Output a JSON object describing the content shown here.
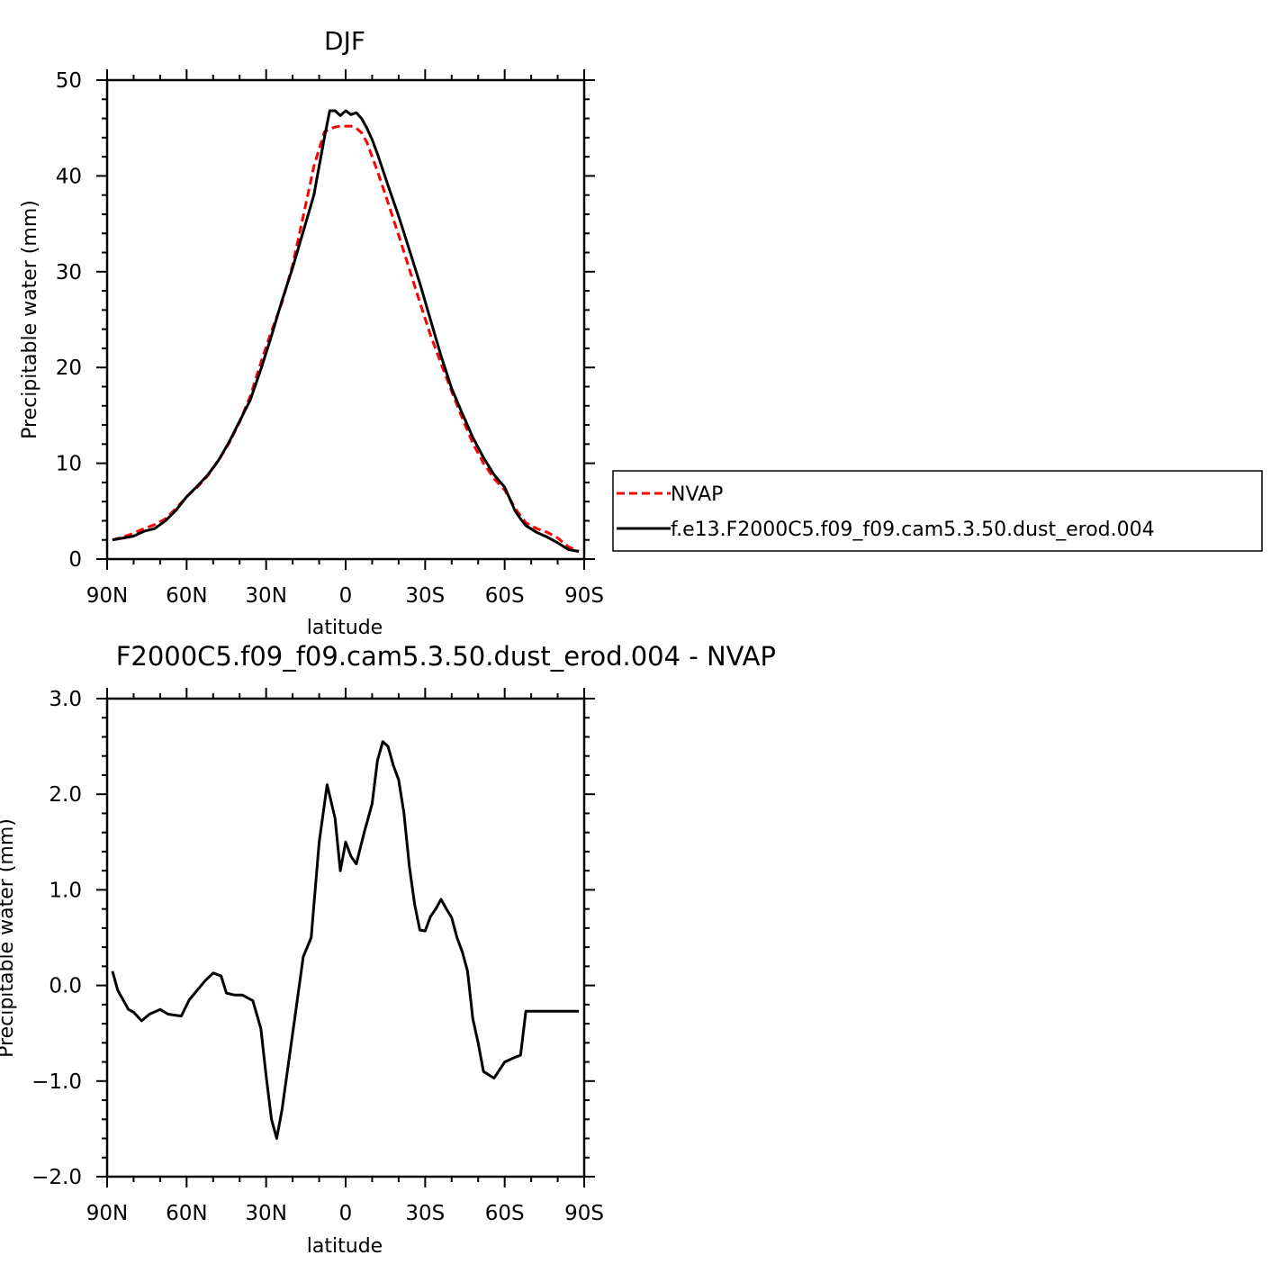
{
  "figure": {
    "title": "DJF",
    "legend_box_color": "#000000"
  },
  "chart_data": [
    {
      "type": "line",
      "title": "DJF",
      "xlabel": "latitude",
      "ylabel": "Precipitable water (mm)",
      "x_ticklabels": [
        "90N",
        "60N",
        "30N",
        "0",
        "30S",
        "60S",
        "90S"
      ],
      "x_tick_values": [
        -90,
        -60,
        -30,
        0,
        30,
        60,
        90
      ],
      "xlim": [
        -90,
        90
      ],
      "ylim": [
        0,
        50
      ],
      "y_ticks": [
        0,
        10,
        20,
        30,
        40,
        50
      ],
      "y_ticklabels": [
        "0",
        "10",
        "20",
        "30",
        "40",
        "50"
      ],
      "grid": false,
      "legend_position": "right",
      "series": [
        {
          "name": "NVAP",
          "color": "#ff0000",
          "dash": "dashed",
          "x": [
            -88,
            -84,
            -80,
            -76,
            -72,
            -68,
            -64,
            -60,
            -56,
            -52,
            -48,
            -44,
            -40,
            -36,
            -32,
            -28,
            -24,
            -20,
            -16,
            -12,
            -8,
            -6,
            -4,
            -2,
            0,
            2,
            4,
            6,
            8,
            10,
            12,
            16,
            20,
            24,
            28,
            32,
            36,
            40,
            44,
            48,
            52,
            56,
            60,
            64,
            66,
            68,
            72,
            76,
            80,
            84,
            88
          ],
          "y": [
            2.0,
            2.3,
            2.7,
            3.2,
            3.6,
            4.2,
            5.3,
            6.5,
            7.5,
            8.7,
            10.3,
            12.1,
            14.3,
            17.0,
            20.5,
            23.8,
            26.8,
            30.7,
            35.8,
            41.0,
            44.6,
            44.9,
            45.1,
            45.2,
            45.2,
            45.2,
            45.0,
            44.5,
            43.5,
            42.0,
            40.5,
            37.2,
            33.8,
            30.3,
            26.8,
            23.4,
            20.4,
            17.5,
            14.7,
            12.1,
            10.0,
            8.4,
            7.2,
            5.3,
            4.5,
            3.8,
            3.2,
            2.8,
            2.2,
            1.3,
            0.8
          ]
        },
        {
          "name": "f.e13.F2000C5.f09_f09.cam5.3.50.dust_erod.004",
          "color": "#000000",
          "dash": "solid",
          "x": [
            -88,
            -84,
            -80,
            -76,
            -72,
            -68,
            -64,
            -60,
            -56,
            -52,
            -48,
            -44,
            -40,
            -36,
            -32,
            -28,
            -24,
            -20,
            -16,
            -12,
            -8,
            -6,
            -4,
            -2,
            0,
            2,
            4,
            6,
            8,
            10,
            12,
            16,
            20,
            24,
            28,
            32,
            36,
            40,
            44,
            48,
            52,
            56,
            60,
            64,
            66,
            68,
            72,
            76,
            80,
            84,
            88
          ],
          "y": [
            2.0,
            2.2,
            2.4,
            2.9,
            3.2,
            4.0,
            5.1,
            6.5,
            7.6,
            8.8,
            10.3,
            12.2,
            14.4,
            16.6,
            19.8,
            23.3,
            27.0,
            30.4,
            34.2,
            38.0,
            44.0,
            46.8,
            46.8,
            46.3,
            46.8,
            46.4,
            46.6,
            46.0,
            45.0,
            43.8,
            42.3,
            39.0,
            35.8,
            32.3,
            28.8,
            25.0,
            21.2,
            17.8,
            15.2,
            12.7,
            10.6,
            8.8,
            7.5,
            5.0,
            4.2,
            3.5,
            2.8,
            2.3,
            1.7,
            1.0,
            0.8
          ]
        }
      ]
    },
    {
      "type": "line",
      "title": "F2000C5.f09_f09.cam5.3.50.dust_erod.004 - NVAP",
      "xlabel": "latitude",
      "ylabel": "Precipitable water (mm)",
      "x_ticklabels": [
        "90N",
        "60N",
        "30N",
        "0",
        "30S",
        "60S",
        "90S"
      ],
      "x_tick_values": [
        -90,
        -60,
        -30,
        0,
        30,
        60,
        90
      ],
      "xlim": [
        -90,
        90
      ],
      "ylim": [
        -2.0,
        3.0
      ],
      "y_ticks": [
        -2.0,
        -1.0,
        0.0,
        1.0,
        2.0,
        3.0
      ],
      "y_ticklabels": [
        "−2.0",
        "−1.0",
        "0.0",
        "1.0",
        "2.0",
        "3.0"
      ],
      "grid": false,
      "series": [
        {
          "color": "#000000",
          "dash": "solid",
          "x": [
            -88,
            -86,
            -82,
            -80,
            -77,
            -74,
            -70,
            -67,
            -62,
            -59,
            -56,
            -53,
            -50,
            -47,
            -45,
            -42,
            -39,
            -35,
            -32,
            -30,
            -28,
            -26,
            -24,
            -22,
            -19,
            -16,
            -13,
            -10,
            -7,
            -4,
            -2,
            0,
            2,
            4,
            7,
            10,
            12,
            14,
            16,
            18,
            20,
            22,
            24,
            26,
            28,
            30,
            32,
            34,
            36,
            38,
            40,
            42,
            44,
            46,
            48,
            50,
            52,
            56,
            60,
            64,
            66,
            68,
            72,
            74,
            76,
            78,
            80,
            82,
            84,
            88
          ],
          "y": [
            0.15,
            -0.05,
            -0.25,
            -0.28,
            -0.37,
            -0.3,
            -0.25,
            -0.3,
            -0.32,
            -0.15,
            -0.05,
            0.05,
            0.13,
            0.1,
            -0.08,
            -0.1,
            -0.1,
            -0.16,
            -0.45,
            -0.95,
            -1.4,
            -1.6,
            -1.3,
            -0.9,
            -0.3,
            0.3,
            0.5,
            1.5,
            2.1,
            1.75,
            1.2,
            1.5,
            1.35,
            1.27,
            1.6,
            1.9,
            2.35,
            2.55,
            2.5,
            2.3,
            2.15,
            1.8,
            1.25,
            0.85,
            0.58,
            0.57,
            0.72,
            0.8,
            0.9,
            0.8,
            0.71,
            0.5,
            0.35,
            0.15,
            -0.35,
            -0.6,
            -0.9,
            -0.97,
            -0.8,
            -0.75,
            -0.73,
            -0.27,
            -0.27,
            -0.27,
            -0.27,
            -0.27,
            -0.27,
            -0.27,
            -0.27,
            -0.27
          ]
        }
      ]
    }
  ]
}
